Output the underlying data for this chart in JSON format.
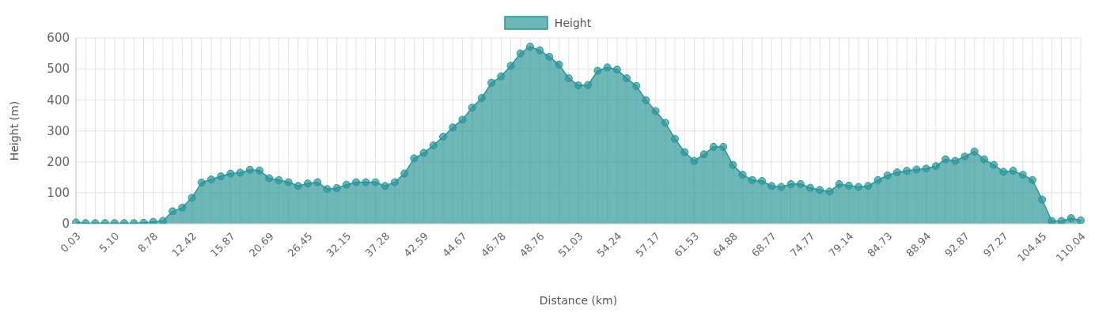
{
  "chart_data": {
    "type": "area",
    "xlabel": "Distance (km)",
    "ylabel": "Height (m)",
    "categories": [
      "0.03",
      null,
      null,
      null,
      "5.10",
      null,
      null,
      null,
      "8.78",
      null,
      null,
      null,
      "12.42",
      null,
      null,
      null,
      "15.87",
      null,
      null,
      null,
      "20.69",
      null,
      null,
      null,
      "26.45",
      null,
      null,
      null,
      "32.15",
      null,
      null,
      null,
      "37.28",
      null,
      null,
      null,
      "42.59",
      null,
      null,
      null,
      "44.67",
      null,
      null,
      null,
      "46.78",
      null,
      null,
      null,
      "48.76",
      null,
      null,
      null,
      "51.03",
      null,
      null,
      null,
      "54.24",
      null,
      null,
      null,
      "57.17",
      null,
      null,
      null,
      "61.53",
      null,
      null,
      null,
      "64.88",
      null,
      null,
      null,
      "68.77",
      null,
      null,
      null,
      "74.77",
      null,
      null,
      null,
      "79.14",
      null,
      null,
      null,
      "84.73",
      null,
      null,
      null,
      "88.94",
      null,
      null,
      null,
      "92.87",
      null,
      null,
      null,
      "97.27",
      null,
      null,
      null,
      "104.45",
      null,
      null,
      null,
      "110.04"
    ],
    "series": [
      {
        "name": "Height",
        "color": "#2a9598",
        "values": [
          4,
          2,
          2,
          2,
          2,
          2,
          2,
          3,
          6,
          9,
          40,
          52,
          84,
          133,
          143,
          153,
          162,
          165,
          174,
          172,
          147,
          141,
          134,
          122,
          130,
          134,
          112,
          115,
          126,
          134,
          134,
          134,
          122,
          134,
          162,
          211,
          229,
          253,
          281,
          311,
          336,
          375,
          406,
          455,
          476,
          510,
          550,
          572,
          560,
          539,
          514,
          470,
          447,
          448,
          494,
          505,
          498,
          470,
          445,
          399,
          364,
          326,
          274,
          231,
          203,
          224,
          248,
          248,
          190,
          158,
          141,
          138,
          122,
          119,
          128,
          128,
          116,
          109,
          104,
          128,
          123,
          119,
          122,
          141,
          156,
          166,
          171,
          175,
          178,
          186,
          208,
          203,
          217,
          233,
          208,
          190,
          168,
          171,
          158,
          141,
          78,
          9,
          9,
          18,
          11
        ]
      }
    ],
    "ylim": [
      0,
      600
    ],
    "yticks": [
      0,
      100,
      200,
      300,
      400,
      500,
      600
    ],
    "grid": true,
    "legend": "top",
    "marker": "circle"
  }
}
